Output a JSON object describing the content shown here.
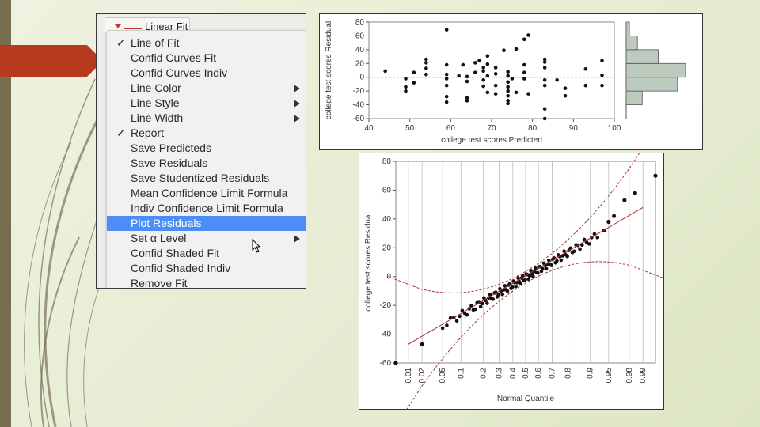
{
  "colors": {
    "accent": "#b83a1e",
    "stripe": "#786d4e",
    "highlight": "#4b8ef5",
    "residual_bars": "#bccbbe"
  },
  "menu": {
    "tab_label": "Linear Fit",
    "items": [
      {
        "label": "Line of Fit",
        "checked": true,
        "submenu": false
      },
      {
        "label": "Confid Curves Fit",
        "checked": false,
        "submenu": false
      },
      {
        "label": "Confid Curves Indiv",
        "checked": false,
        "submenu": false
      },
      {
        "label": "Line Color",
        "checked": false,
        "submenu": true
      },
      {
        "label": "Line Style",
        "checked": false,
        "submenu": true
      },
      {
        "label": "Line Width",
        "checked": false,
        "submenu": true
      },
      {
        "label": "Report",
        "checked": true,
        "submenu": false
      },
      {
        "label": "Save Predicteds",
        "checked": false,
        "submenu": false
      },
      {
        "label": "Save Residuals",
        "checked": false,
        "submenu": false
      },
      {
        "label": "Save Studentized Residuals",
        "checked": false,
        "submenu": false
      },
      {
        "label": "Mean Confidence Limit Formula",
        "checked": false,
        "submenu": false
      },
      {
        "label": "Indiv Confidence Limit Formula",
        "checked": false,
        "submenu": false
      },
      {
        "label": "Plot Residuals",
        "checked": false,
        "submenu": false,
        "highlighted": true
      },
      {
        "label": "Set α Level",
        "checked": false,
        "submenu": true
      },
      {
        "label": "Confid Shaded Fit",
        "checked": false,
        "submenu": false
      },
      {
        "label": "Confid Shaded Indiv",
        "checked": false,
        "submenu": false
      },
      {
        "label": "Remove Fit",
        "checked": false,
        "submenu": false
      }
    ],
    "check_glyph": "✓"
  },
  "chart_data": [
    {
      "type": "scatter",
      "xlabel": "college test scores Predicted",
      "ylabel": "college test scores Residual",
      "xlim": [
        40,
        100
      ],
      "ylim": [
        -60,
        80
      ],
      "xticks": [
        40,
        50,
        60,
        70,
        80,
        90,
        100
      ],
      "yticks": [
        -60,
        -40,
        -20,
        0,
        20,
        40,
        60,
        80
      ],
      "reference_line": 0,
      "points": [
        [
          44,
          9
        ],
        [
          49,
          -2
        ],
        [
          49,
          -14
        ],
        [
          49,
          -20
        ],
        [
          51,
          -8
        ],
        [
          51,
          7
        ],
        [
          54,
          4
        ],
        [
          54,
          13
        ],
        [
          54,
          21
        ],
        [
          54,
          26
        ],
        [
          59,
          69
        ],
        [
          59,
          18
        ],
        [
          59,
          4
        ],
        [
          59,
          -2
        ],
        [
          59,
          -12
        ],
        [
          59,
          -28
        ],
        [
          59,
          -36
        ],
        [
          62,
          2
        ],
        [
          63,
          18
        ],
        [
          64,
          1
        ],
        [
          64,
          -6
        ],
        [
          64,
          -30
        ],
        [
          64,
          -34
        ],
        [
          66,
          21
        ],
        [
          66,
          7
        ],
        [
          67,
          24
        ],
        [
          68,
          14
        ],
        [
          68,
          9
        ],
        [
          68,
          -4
        ],
        [
          68,
          -13
        ],
        [
          69,
          31
        ],
        [
          69,
          19
        ],
        [
          69,
          2
        ],
        [
          69,
          -22
        ],
        [
          71,
          14
        ],
        [
          71,
          5
        ],
        [
          71,
          -12
        ],
        [
          71,
          -24
        ],
        [
          73,
          39
        ],
        [
          74,
          8
        ],
        [
          74,
          2
        ],
        [
          74,
          -7
        ],
        [
          74,
          -14
        ],
        [
          74,
          -20
        ],
        [
          74,
          -27
        ],
        [
          74,
          -34
        ],
        [
          74,
          -38
        ],
        [
          75,
          -2
        ],
        [
          76,
          41
        ],
        [
          76,
          -22
        ],
        [
          78,
          55
        ],
        [
          78,
          18
        ],
        [
          78,
          7
        ],
        [
          78,
          -2
        ],
        [
          79,
          -24
        ],
        [
          79,
          61
        ],
        [
          83,
          26
        ],
        [
          83,
          14
        ],
        [
          83,
          -4
        ],
        [
          83,
          -12
        ],
        [
          83,
          22
        ],
        [
          83,
          -46
        ],
        [
          83,
          -60
        ],
        [
          86,
          -4
        ],
        [
          88,
          -16
        ],
        [
          88,
          -27
        ],
        [
          93,
          12
        ],
        [
          93,
          -12
        ],
        [
          97,
          24
        ],
        [
          97,
          3
        ],
        [
          97,
          -12
        ]
      ],
      "histogram": {
        "bins": [
          [
            -60,
            -40,
            0
          ],
          [
            -40,
            -20,
            10
          ],
          [
            -20,
            0,
            32
          ],
          [
            0,
            20,
            37
          ],
          [
            20,
            40,
            20
          ],
          [
            40,
            60,
            7
          ],
          [
            60,
            80,
            2
          ]
        ]
      }
    },
    {
      "type": "scatter",
      "xlabel": "Normal Quantile",
      "ylabel": "college test scores Residual",
      "ylim": [
        -60,
        80
      ],
      "yticks": [
        -60,
        -40,
        -20,
        0,
        20,
        40,
        60,
        80
      ],
      "xtick_labels": [
        "0.01",
        "0.02",
        "0.05",
        "0.1",
        "0.2",
        "0.3",
        "0.4",
        "0.5",
        "0.6",
        "0.7",
        "0.8",
        "0.9",
        "0.95",
        "0.98",
        "0.99"
      ],
      "xtick_probs": [
        0.01,
        0.02,
        0.05,
        0.1,
        0.2,
        0.3,
        0.4,
        0.5,
        0.6,
        0.7,
        0.8,
        0.9,
        0.95,
        0.98,
        0.99
      ],
      "n_points": 110,
      "fit_line": {
        "from": [
          0.0,
          -53
        ],
        "to": [
          1.0,
          52
        ]
      },
      "tail_points": [
        [
          0.005,
          -60
        ],
        [
          0.02,
          -47
        ],
        [
          0.985,
          58
        ],
        [
          0.995,
          70
        ],
        [
          0.975,
          53
        ],
        [
          0.96,
          42
        ],
        [
          0.95,
          38
        ],
        [
          0.94,
          32
        ]
      ]
    }
  ]
}
